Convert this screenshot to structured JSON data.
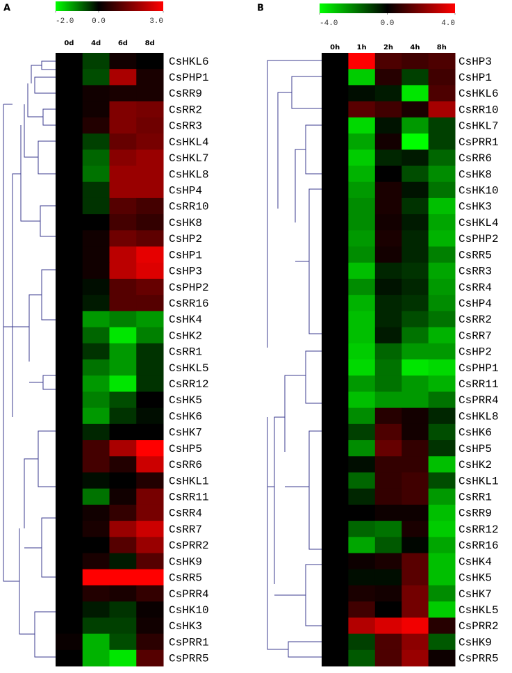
{
  "chart_data": [
    {
      "type": "heatmap",
      "panel_label": "A",
      "columns": [
        "0d",
        "4d",
        "6d",
        "8d"
      ],
      "rows": [
        "CsHKL6",
        "CsPHP1",
        "CsRR9",
        "CsRR2",
        "CsRR3",
        "CsHKL4",
        "CsHKL7",
        "CsHKL8",
        "CsHP4",
        "CsRR10",
        "CsHK8",
        "CsHP2",
        "CsHP1",
        "CsHP3",
        "CsPHP2",
        "CsRR16",
        "CsHK4",
        "CsHK2",
        "CsRR1",
        "CsHKL5",
        "CsRR12",
        "CsHK5",
        "CsHK6",
        "CsHK7",
        "CsHP5",
        "CsRR6",
        "CsHKL1",
        "CsRR11",
        "CsRR4",
        "CsRR7",
        "CsPRR2",
        "CsHK9",
        "CsRR5",
        "CsPRR4",
        "CsHK10",
        "CsHK3",
        "CsPRR1",
        "CsPRR5"
      ],
      "values": [
        [
          0,
          -0.5,
          0.2,
          0
        ],
        [
          0,
          -0.6,
          2.0,
          0.3
        ],
        [
          0,
          0.2,
          0.3,
          0.3
        ],
        [
          0,
          0.2,
          1.5,
          1.4
        ],
        [
          0,
          0.4,
          1.5,
          1.3
        ],
        [
          0,
          -0.5,
          1.2,
          1.4
        ],
        [
          0,
          -0.8,
          1.6,
          1.8
        ],
        [
          0,
          -0.9,
          1.8,
          1.8
        ],
        [
          0,
          -0.4,
          1.8,
          1.8
        ],
        [
          0,
          -0.4,
          1.0,
          0.8
        ],
        [
          0,
          0,
          0.8,
          0.6
        ],
        [
          0,
          0.2,
          1.3,
          1.1
        ],
        [
          0,
          0.2,
          2.2,
          2.7
        ],
        [
          0,
          0.2,
          2.2,
          2.6
        ],
        [
          0,
          -0.1,
          1.0,
          1.2
        ],
        [
          0,
          -0.2,
          1.0,
          1.0
        ],
        [
          0,
          -1.2,
          -1.0,
          -1.2
        ],
        [
          0,
          -0.8,
          -1.8,
          -1.0
        ],
        [
          0,
          -0.4,
          -1.2,
          -0.4
        ],
        [
          0,
          -0.9,
          -1.2,
          -0.4
        ],
        [
          0,
          -1.2,
          -1.8,
          -0.4
        ],
        [
          0,
          -1.0,
          -0.6,
          0
        ],
        [
          0,
          -1.2,
          -0.4,
          -0.1
        ],
        [
          0,
          -0.3,
          0,
          0
        ],
        [
          0,
          0.8,
          2.0,
          3.0
        ],
        [
          0,
          0.8,
          0.4,
          2.4
        ],
        [
          0,
          -0.1,
          0,
          0.4
        ],
        [
          0,
          -0.9,
          0.2,
          1.4
        ],
        [
          0,
          0.2,
          0.6,
          1.4
        ],
        [
          0,
          0.3,
          1.8,
          2.4
        ],
        [
          0,
          0,
          1.0,
          1.8
        ],
        [
          0,
          0.3,
          -0.2,
          1.0
        ],
        [
          0,
          3.0,
          3.0,
          3.0
        ],
        [
          0,
          0.4,
          0.3,
          0.6
        ],
        [
          0,
          -0.2,
          -0.4,
          0.1
        ],
        [
          0,
          -0.5,
          -0.5,
          0.2
        ],
        [
          0.1,
          -1.4,
          -0.6,
          0.5
        ],
        [
          0,
          -1.4,
          -1.8,
          1.0
        ]
      ],
      "clim": [
        -2,
        3
      ],
      "cticks": [
        {
          "value": -2,
          "label": "-2.0"
        },
        {
          "value": 0,
          "label": "0.0"
        },
        {
          "value": 3,
          "label": "3.0"
        }
      ],
      "low_color": "#00ff00",
      "mid_color": "#000000",
      "high_color": "#ff0000"
    },
    {
      "type": "heatmap",
      "panel_label": "B",
      "columns": [
        "0h",
        "1h",
        "2h",
        "4h",
        "8h"
      ],
      "rows": [
        "CsHP3",
        "CsHP1",
        "CsHKL6",
        "CsRR10",
        "CsHKL7",
        "CsPRR1",
        "CsRR6",
        "CsHK8",
        "CsHK10",
        "CsHK3",
        "CsHKL4",
        "CsPHP2",
        "CsRR5",
        "CsRR3",
        "CsRR4",
        "CsHP4",
        "CsRR2",
        "CsRR7",
        "CsHP2",
        "CsPHP1",
        "CsRR11",
        "CsPRR4",
        "CsHKL8",
        "CsHK6",
        "CsHP5",
        "CsHK2",
        "CsHKL1",
        "CsRR1",
        "CsRR9",
        "CsRR12",
        "CsRR16",
        "CsHK4",
        "CsHK5",
        "CsHK7",
        "CsHKL5",
        "CsPRR2",
        "CsHK9",
        "CsPRR5"
      ],
      "values": [
        [
          0,
          4.0,
          1.2,
          1.0,
          1.2
        ],
        [
          0,
          -3.2,
          0.6,
          -1.0,
          1.0
        ],
        [
          0,
          -0.2,
          -0.4,
          -3.6,
          1.2
        ],
        [
          0,
          1.4,
          1.0,
          0.4,
          2.6
        ],
        [
          0,
          -3.4,
          -0.3,
          -2.4,
          -1.0
        ],
        [
          0,
          -2.6,
          0.3,
          -4.0,
          -1.0
        ],
        [
          0,
          -3.2,
          -0.6,
          -0.4,
          -1.6
        ],
        [
          0,
          -2.8,
          0,
          -1.2,
          -2.2
        ],
        [
          0,
          -2.4,
          0.4,
          -0.3,
          -1.8
        ],
        [
          0,
          -2.2,
          0.4,
          -0.8,
          -3.0
        ],
        [
          0,
          -2.2,
          0.3,
          -0.4,
          -2.6
        ],
        [
          0,
          -2.4,
          0.4,
          -0.6,
          -2.8
        ],
        [
          0,
          -2.2,
          0.3,
          -0.6,
          -2.0
        ],
        [
          0,
          -3.0,
          -0.6,
          -0.8,
          -2.6
        ],
        [
          0,
          -2.2,
          -0.3,
          -0.6,
          -2.4
        ],
        [
          0,
          -2.8,
          -0.6,
          -0.8,
          -2.2
        ],
        [
          0,
          -3.0,
          -0.6,
          -1.2,
          -1.8
        ],
        [
          0,
          -3.0,
          -0.4,
          -1.8,
          -2.8
        ],
        [
          0,
          -3.2,
          -1.6,
          -2.4,
          -2.4
        ],
        [
          0,
          -3.4,
          -1.8,
          -3.6,
          -3.4
        ],
        [
          0,
          -2.4,
          -1.8,
          -2.4,
          -2.8
        ],
        [
          0,
          -3.0,
          -2.4,
          -2.4,
          -1.8
        ],
        [
          0,
          -2.2,
          0.6,
          0.3,
          -0.6
        ],
        [
          0,
          -1.0,
          1.2,
          0.3,
          -1.2
        ],
        [
          0,
          -2.2,
          1.6,
          0.8,
          -0.8
        ],
        [
          0,
          -0.2,
          0.8,
          0.8,
          -3.0
        ],
        [
          0,
          -1.6,
          0.8,
          1.0,
          -1.2
        ],
        [
          0,
          -0.6,
          0.8,
          1.0,
          -2.4
        ],
        [
          0,
          0,
          0.2,
          0.2,
          -3.0
        ],
        [
          0,
          -1.6,
          -1.8,
          0.4,
          -3.2
        ],
        [
          0,
          -2.6,
          -1.4,
          -0.1,
          -2.6
        ],
        [
          0,
          0.2,
          0.4,
          1.4,
          -3.0
        ],
        [
          0,
          -0.2,
          -0.2,
          1.4,
          -3.0
        ],
        [
          0,
          0.4,
          0.3,
          1.8,
          -2.2
        ],
        [
          0,
          1.0,
          0,
          1.8,
          -3.2
        ],
        [
          0,
          2.8,
          3.4,
          3.8,
          0.6
        ],
        [
          0,
          -1.0,
          1.2,
          2.2,
          -1.4
        ],
        [
          0,
          -1.4,
          1.2,
          2.4,
          0.2
        ]
      ],
      "clim": [
        -4,
        4
      ],
      "cticks": [
        {
          "value": -4,
          "label": "-4.0"
        },
        {
          "value": 0,
          "label": "0.0"
        },
        {
          "value": 4,
          "label": "4.0"
        }
      ],
      "low_color": "#00ff00",
      "mid_color": "#000000",
      "high_color": "#ff0000"
    }
  ]
}
